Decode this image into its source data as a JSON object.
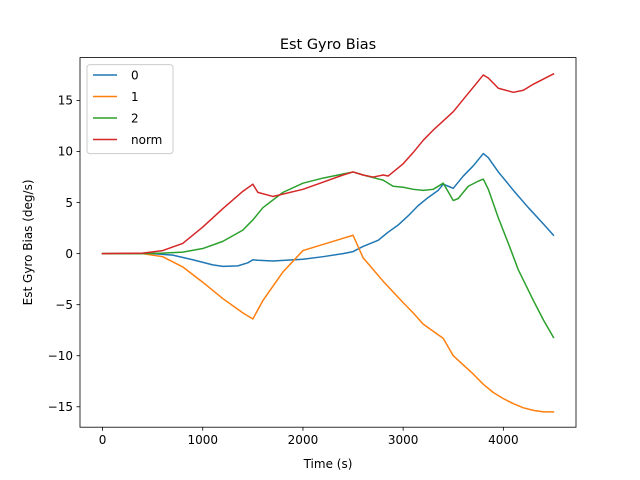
{
  "chart_data": {
    "type": "line",
    "title": "Est Gyro Bias",
    "xlabel": "Time (s)",
    "ylabel": "Est Gyro Bias (deg/s)",
    "xlim": [
      -225,
      4725
    ],
    "ylim": [
      -17,
      19.2
    ],
    "xticks": [
      0,
      1000,
      2000,
      3000,
      4000
    ],
    "xtick_labels": [
      "0",
      "1000",
      "2000",
      "3000",
      "4000"
    ],
    "yticks": [
      -15,
      -10,
      -5,
      0,
      5,
      10,
      15
    ],
    "ytick_labels": [
      "−15",
      "−10",
      "−5",
      "0",
      "5",
      "10",
      "15"
    ],
    "grid": false,
    "legend_position": "top-left",
    "series": [
      {
        "name": "0",
        "color": "#1f77b4",
        "x": [
          0,
          500,
          700,
          900,
          1100,
          1200,
          1350,
          1450,
          1500,
          1550,
          1700,
          2000,
          2200,
          2400,
          2500,
          2600,
          2750,
          2850,
          2950,
          3050,
          3150,
          3250,
          3350,
          3400,
          3450,
          3500,
          3600,
          3700,
          3800,
          3850,
          3950,
          4100,
          4250,
          4400,
          4500
        ],
        "values": [
          0,
          0,
          -0.15,
          -0.6,
          -1.1,
          -1.25,
          -1.2,
          -0.9,
          -0.6,
          -0.65,
          -0.72,
          -0.55,
          -0.3,
          0,
          0.2,
          0.7,
          1.3,
          2.1,
          2.8,
          3.7,
          4.7,
          5.5,
          6.2,
          6.8,
          6.6,
          6.4,
          7.6,
          8.6,
          9.8,
          9.4,
          8.0,
          6.2,
          4.5,
          2.9,
          1.8
        ]
      },
      {
        "name": "1",
        "color": "#ff7f0e",
        "x": [
          0,
          400,
          600,
          800,
          1000,
          1200,
          1400,
          1500,
          1600,
          1800,
          2000,
          2200,
          2400,
          2500,
          2600,
          2800,
          3000,
          3100,
          3200,
          3300,
          3400,
          3500,
          3600,
          3700,
          3800,
          3900,
          4000,
          4100,
          4200,
          4300,
          4400,
          4500
        ],
        "values": [
          0,
          0,
          -0.3,
          -1.3,
          -2.8,
          -4.4,
          -5.8,
          -6.4,
          -4.6,
          -1.8,
          0.3,
          0.9,
          1.5,
          1.8,
          -0.4,
          -2.7,
          -4.8,
          -5.8,
          -6.9,
          -7.6,
          -8.3,
          -10.0,
          -10.9,
          -11.8,
          -12.8,
          -13.6,
          -14.2,
          -14.7,
          -15.1,
          -15.35,
          -15.5,
          -15.5
        ]
      },
      {
        "name": "2",
        "color": "#2ca02c",
        "x": [
          0,
          400,
          600,
          800,
          1000,
          1200,
          1400,
          1500,
          1600,
          1800,
          2000,
          2200,
          2400,
          2500,
          2600,
          2800,
          2900,
          3000,
          3100,
          3200,
          3300,
          3400,
          3500,
          3550,
          3650,
          3750,
          3800,
          3850,
          3950,
          4050,
          4150,
          4300,
          4400,
          4500
        ],
        "values": [
          0,
          0,
          0.05,
          0.15,
          0.5,
          1.2,
          2.3,
          3.3,
          4.5,
          6.0,
          6.9,
          7.4,
          7.8,
          8.0,
          7.7,
          7.2,
          6.6,
          6.5,
          6.3,
          6.2,
          6.3,
          6.9,
          5.2,
          5.4,
          6.6,
          7.1,
          7.3,
          6.3,
          3.5,
          1.0,
          -1.6,
          -4.6,
          -6.5,
          -8.2
        ]
      },
      {
        "name": "norm",
        "color": "#d62728",
        "x": [
          0,
          400,
          600,
          800,
          1000,
          1200,
          1400,
          1500,
          1550,
          1700,
          2000,
          2200,
          2400,
          2500,
          2600,
          2700,
          2800,
          2850,
          3000,
          3100,
          3200,
          3300,
          3400,
          3500,
          3600,
          3700,
          3800,
          3850,
          3950,
          4100,
          4200,
          4300,
          4400,
          4500
        ],
        "values": [
          0,
          0.05,
          0.3,
          1.0,
          2.6,
          4.4,
          6.1,
          6.8,
          6.0,
          5.6,
          6.3,
          7.0,
          7.7,
          8.0,
          7.7,
          7.5,
          7.7,
          7.6,
          8.8,
          9.9,
          11.1,
          12.1,
          13.0,
          13.9,
          15.1,
          16.3,
          17.5,
          17.2,
          16.2,
          15.8,
          16.0,
          16.6,
          17.1,
          17.6
        ]
      }
    ]
  }
}
